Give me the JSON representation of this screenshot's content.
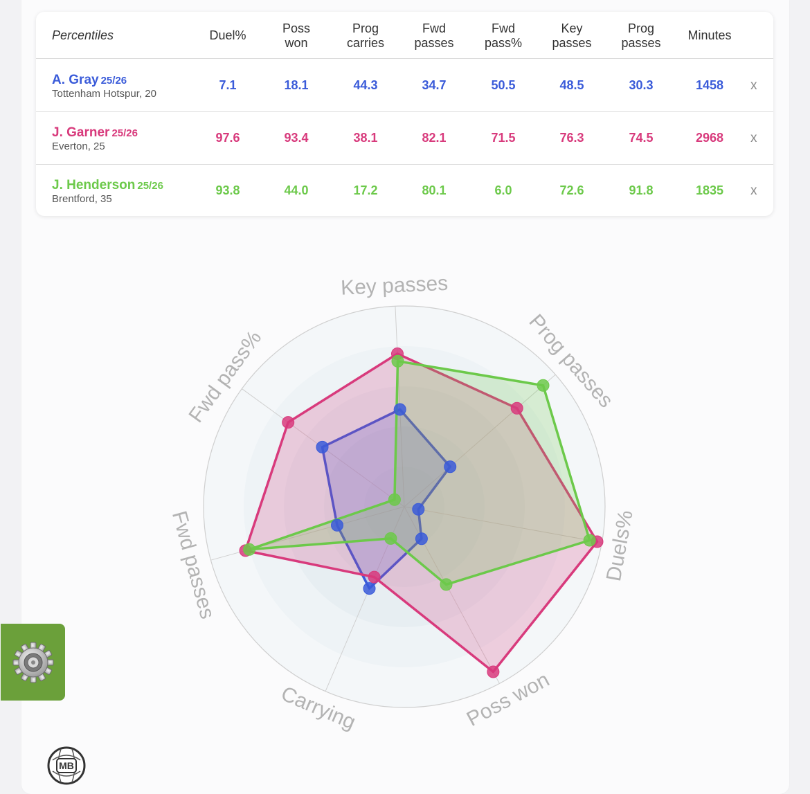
{
  "table": {
    "corner_label": "Percentiles",
    "columns": [
      [
        "Duel%"
      ],
      [
        "Poss",
        "won"
      ],
      [
        "Prog",
        "carries"
      ],
      [
        "Fwd",
        "passes"
      ],
      [
        "Fwd",
        "pass%"
      ],
      [
        "Key",
        "passes"
      ],
      [
        "Prog",
        "passes"
      ],
      [
        "Minutes"
      ]
    ],
    "close_label": "x",
    "players": [
      {
        "name": "A. Gray",
        "season": "25/26",
        "club": "Tottenham Hotspur, 20",
        "color": "#3a5bd9",
        "values": [
          "7.1",
          "18.1",
          "44.3",
          "34.7",
          "50.5",
          "48.5",
          "30.3",
          "1458"
        ]
      },
      {
        "name": "J. Garner",
        "season": "25/26",
        "club": "Everton, 25",
        "color": "#d83a7c",
        "values": [
          "97.6",
          "93.4",
          "38.1",
          "82.1",
          "71.5",
          "76.3",
          "74.5",
          "2968"
        ]
      },
      {
        "name": "J. Henderson",
        "season": "25/26",
        "club": "Brentford, 35",
        "color": "#6cc94a",
        "values": [
          "93.8",
          "44.0",
          "17.2",
          "80.1",
          "6.0",
          "72.6",
          "91.8",
          "1835"
        ]
      }
    ]
  },
  "chart_data": {
    "type": "radar",
    "axes": [
      "Key passes",
      "Prog passes",
      "Duels%",
      "Poss won",
      "Carrying",
      "Fwd passes",
      "Fwd pass%"
    ],
    "range": [
      0,
      100
    ],
    "series": [
      {
        "name": "A. Gray",
        "color": "#3a5bd9",
        "values": [
          48.5,
          30.3,
          7.1,
          18.1,
          44.3,
          34.7,
          50.5
        ]
      },
      {
        "name": "J. Garner",
        "color": "#d83a7c",
        "values": [
          76.3,
          74.5,
          97.6,
          93.4,
          38.1,
          82.1,
          71.5
        ]
      },
      {
        "name": "J. Henderson",
        "color": "#6cc94a",
        "values": [
          72.6,
          91.8,
          93.8,
          44.0,
          17.2,
          80.1,
          6.0
        ]
      }
    ]
  },
  "logo_text": "MB",
  "icons": {
    "settings": "gear-icon",
    "logo": "mb-logo-icon"
  }
}
